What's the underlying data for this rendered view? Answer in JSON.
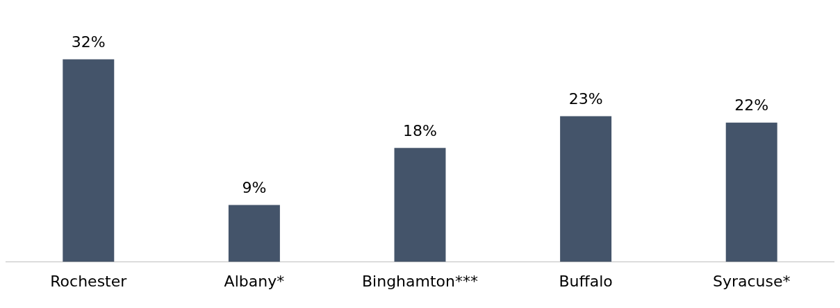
{
  "chart_data": {
    "type": "bar",
    "categories": [
      "Rochester",
      "Albany*",
      "Binghamton***",
      "Buffalo",
      "Syracuse*"
    ],
    "values": [
      32,
      9,
      18,
      23,
      22
    ],
    "value_labels": [
      "32%",
      "9%",
      "18%",
      "23%",
      "22%"
    ],
    "color": "#44546a",
    "grid": false,
    "legend": false,
    "tick_labels": "x"
  }
}
